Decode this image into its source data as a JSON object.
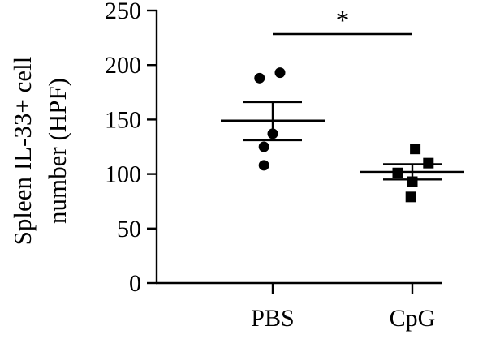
{
  "chart_data": {
    "type": "scatter",
    "title": "",
    "xlabel": "",
    "ylabel_lines": [
      "Spleen IL-33+ cell",
      "number (HPF)"
    ],
    "ylim": [
      0,
      250
    ],
    "yticks": [
      0,
      50,
      100,
      150,
      200,
      250
    ],
    "categories": [
      "PBS",
      "CpG"
    ],
    "groups": [
      {
        "category": "PBS",
        "marker": "circle",
        "values": [
          188,
          193,
          137,
          125,
          108
        ],
        "jitter": [
          -0.45,
          0.25,
          0,
          -0.3,
          -0.3
        ],
        "mean": 149,
        "sem_upper": 166,
        "sem_lower": 131
      },
      {
        "category": "CpG",
        "marker": "square",
        "values": [
          123,
          110,
          101,
          93,
          79
        ],
        "jitter": [
          0.1,
          0.55,
          -0.5,
          0,
          -0.05
        ],
        "mean": 102,
        "sem_upper": 109,
        "sem_lower": 95
      }
    ],
    "significance": {
      "from": "PBS",
      "to": "CpG",
      "label": "*"
    },
    "grid": false,
    "legend": "none"
  }
}
